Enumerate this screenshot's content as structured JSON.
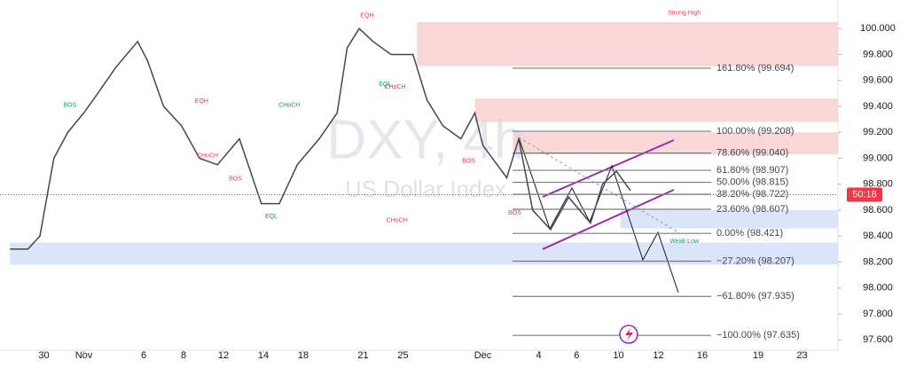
{
  "chart_data": {
    "type": "line",
    "title": "DXY, 4h",
    "subtitle": "US Dollar Index",
    "ylim": [
      97.52,
      100.22
    ],
    "yticks": [
      {
        "value": 97.6,
        "label": "97.600"
      },
      {
        "value": 97.8,
        "label": "97.800"
      },
      {
        "value": 98.0,
        "label": "98.000"
      },
      {
        "value": 98.2,
        "label": "98.200"
      },
      {
        "value": 98.4,
        "label": "98.400"
      },
      {
        "value": 98.6,
        "label": "98.600"
      },
      {
        "value": 98.8,
        "label": "98.800"
      },
      {
        "value": 99.0,
        "label": "99.000"
      },
      {
        "value": 99.2,
        "label": "99.200"
      },
      {
        "value": 99.4,
        "label": "99.400"
      },
      {
        "value": 99.6,
        "label": "99.600"
      },
      {
        "value": 99.8,
        "label": "99.800"
      },
      {
        "value": 100.0,
        "label": "100.000"
      }
    ],
    "xlim": [
      -2.2,
      39.8
    ],
    "xticks": [
      {
        "value": 0,
        "label": "30"
      },
      {
        "value": 2,
        "label": "Nov"
      },
      {
        "value": 5,
        "label": "6"
      },
      {
        "value": 7,
        "label": "8"
      },
      {
        "value": 9,
        "label": "12"
      },
      {
        "value": 11,
        "label": "14"
      },
      {
        "value": 13,
        "label": "18"
      },
      {
        "value": 16,
        "label": "21"
      },
      {
        "value": 18,
        "label": "25"
      },
      {
        "value": 22,
        "label": "Dec"
      },
      {
        "value": 24.8,
        "label": "4"
      },
      {
        "value": 26.7,
        "label": "6"
      },
      {
        "value": 28.8,
        "label": "10"
      },
      {
        "value": 30.8,
        "label": "12"
      },
      {
        "value": 33,
        "label": "16"
      },
      {
        "value": 35.8,
        "label": "19"
      },
      {
        "value": 38,
        "label": "23"
      }
    ],
    "series": [
      {
        "name": "DXY",
        "color": "#434651",
        "x": [
          -1.7,
          -0.8,
          -0.2,
          0.5,
          1.2,
          2.0,
          2.7,
          3.6,
          4.7,
          5.2,
          6.0,
          6.9,
          7.8,
          8.7,
          9.8,
          10.9,
          11.8,
          12.7,
          13.8,
          14.7,
          15.2,
          15.8,
          16.5,
          17.4,
          18.5,
          19.2,
          20.0,
          20.9,
          21.6,
          22.0,
          23.2,
          23.8,
          24.5,
          25.4,
          26.3,
          27.4,
          28.0,
          28.7,
          29.4
        ],
        "values": [
          98.3,
          98.3,
          98.4,
          99.0,
          99.2,
          99.35,
          99.5,
          99.7,
          99.9,
          99.75,
          99.4,
          99.25,
          99.0,
          98.95,
          99.15,
          98.65,
          98.65,
          98.95,
          99.15,
          99.35,
          99.85,
          100.0,
          99.9,
          99.8,
          99.8,
          99.45,
          99.25,
          99.15,
          99.35,
          99.1,
          98.85,
          99.15,
          98.6,
          98.45,
          98.7,
          98.5,
          98.8,
          98.9,
          98.75
        ]
      }
    ],
    "fib_levels": [
      {
        "value": 99.694,
        "label": "161.80% (99.694)"
      },
      {
        "value": 99.208,
        "label": "100.00% (99.208)"
      },
      {
        "value": 99.04,
        "label": "78.60% (99.040)"
      },
      {
        "value": 98.907,
        "label": "61.80% (98.907)"
      },
      {
        "value": 98.815,
        "label": "50.00% (98.815)"
      },
      {
        "value": 98.722,
        "label": "38.20% (98.722)"
      },
      {
        "value": 98.607,
        "label": "23.60% (98.607)"
      },
      {
        "value": 98.421,
        "label": "0.00% (98.421)"
      },
      {
        "value": 98.207,
        "label": "−27.20% (98.207)"
      },
      {
        "value": 97.935,
        "label": "−61.80% (97.935)"
      },
      {
        "value": 97.635,
        "label": "−100.00% (97.635)"
      }
    ],
    "zones": [
      {
        "color": "#f7c9c9",
        "from": 99.71,
        "to": 100.05,
        "x_from": 18.7
      },
      {
        "color": "#f7c9c9",
        "from": 99.28,
        "to": 99.46,
        "x_from": 21.6
      },
      {
        "color": "#f7c9c9",
        "from": 99.03,
        "to": 99.2,
        "x_from": 23.5
      },
      {
        "color": "#cfdcf7",
        "from": 98.18,
        "to": 98.35,
        "x_from": -1.7
      },
      {
        "color": "#cfdcf7",
        "from": 98.46,
        "to": 98.6,
        "x_from": 28.9
      }
    ],
    "annotations": [
      {
        "text": "EQH",
        "x": 16.2,
        "y": 100.1,
        "color": "#f23645"
      },
      {
        "text": "Strong High",
        "x": 32.1,
        "y": 100.12,
        "color": "#f23645"
      },
      {
        "text": "BOS",
        "x": 1.3,
        "y": 99.41,
        "color": "#089981"
      },
      {
        "text": "EQH",
        "x": 7.9,
        "y": 99.44,
        "color": "#f23645"
      },
      {
        "text": "CHoCH",
        "x": 12.3,
        "y": 99.41,
        "color": "#089981"
      },
      {
        "text": "CHoCH",
        "x": 8.2,
        "y": 99.02,
        "color": "#f23645"
      },
      {
        "text": "BOS",
        "x": 9.6,
        "y": 98.84,
        "color": "#f23645"
      },
      {
        "text": "EQL",
        "x": 11.4,
        "y": 98.55,
        "color": "#089981"
      },
      {
        "text": "CHoCH",
        "x": 17.7,
        "y": 98.52,
        "color": "#f23645"
      },
      {
        "text": "EQL",
        "x": 17.1,
        "y": 99.57,
        "color": "#089981"
      },
      {
        "text": "CHoCH",
        "x": 17.6,
        "y": 99.55,
        "color": "#f23645"
      },
      {
        "text": "BOS",
        "x": 21.3,
        "y": 98.98,
        "color": "#f23645"
      },
      {
        "text": "BOS",
        "x": 23.6,
        "y": 98.58,
        "color": "#f23645"
      },
      {
        "text": "Weak Low",
        "x": 32.1,
        "y": 98.36,
        "color": "#089981"
      }
    ],
    "last_price": 98.72,
    "countdown": "50:18"
  }
}
